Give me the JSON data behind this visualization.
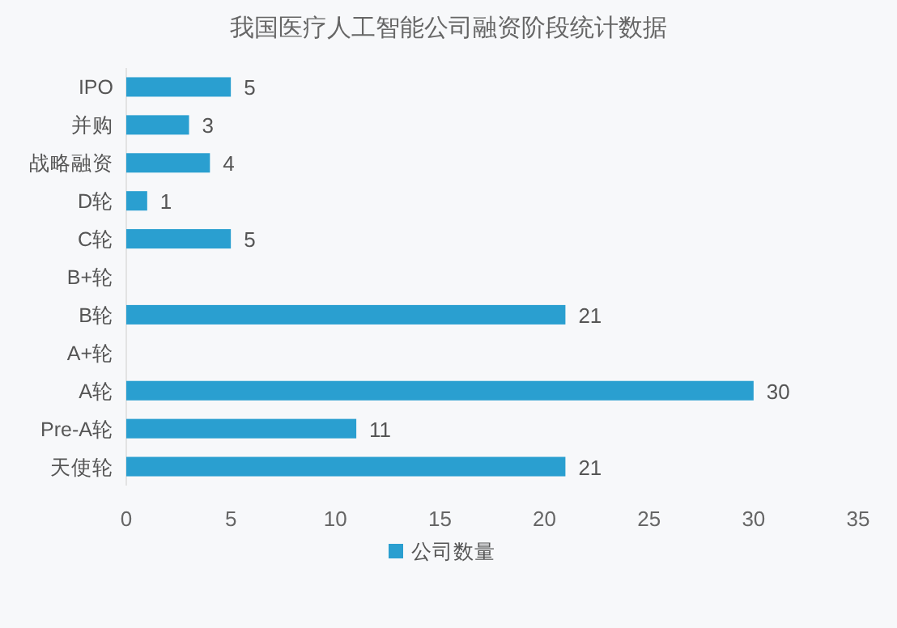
{
  "chart_data": {
    "type": "bar",
    "orientation": "horizontal",
    "title": "我国医疗人工智能公司融资阶段统计数据",
    "categories": [
      "IPO",
      "并购",
      "战略融资",
      "D轮",
      "C轮",
      "B+轮",
      "B轮",
      "A+轮",
      "A轮",
      "Pre-A轮",
      "天使轮"
    ],
    "series": [
      {
        "name": "公司数量",
        "color": "#2a9fd0",
        "values": [
          5,
          3,
          4,
          1,
          5,
          null,
          21,
          null,
          30,
          11,
          21
        ]
      }
    ],
    "xlim": [
      0,
      35
    ],
    "xticks": [
      0,
      5,
      10,
      15,
      20,
      25,
      30,
      35
    ],
    "data_labels": true,
    "legend": "bottom",
    "grid": false
  }
}
